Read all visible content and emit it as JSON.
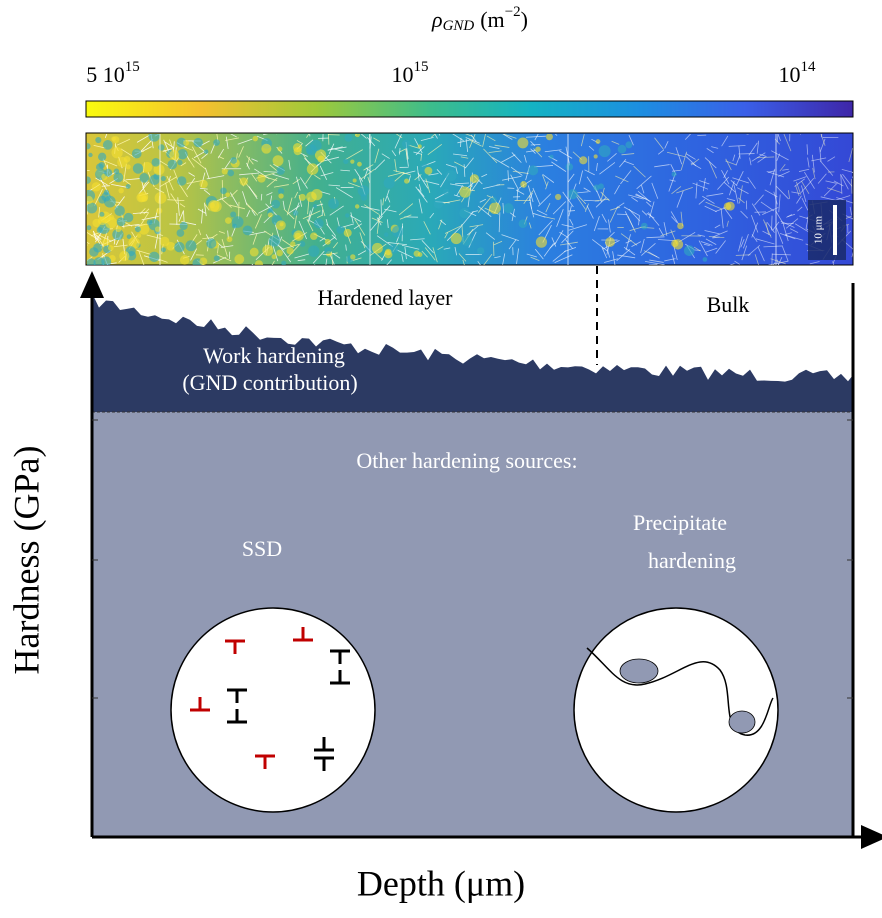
{
  "colorbar": {
    "label": {
      "symbol": "ρ",
      "subscript": "GND",
      "unit": "(m",
      "exponent": "−2",
      "close": ")"
    },
    "ticks": [
      {
        "base": "5 10",
        "exponent": "15"
      },
      {
        "base": "10",
        "exponent": "15"
      },
      {
        "base": "10",
        "exponent": "14"
      }
    ]
  },
  "map": {
    "scale_bar": "10 μm"
  },
  "regions": {
    "hardened": "Hardened layer",
    "bulk": "Bulk"
  },
  "work_hardening": [
    "Work hardening",
    "(GND contribution)"
  ],
  "other_sources": "Other hardening sources:",
  "ssd": "SSD",
  "precipitate": [
    "Precipitate",
    "hardening"
  ],
  "axes": {
    "y": "Hardness (GPa)",
    "x": "Depth (μm)"
  }
}
